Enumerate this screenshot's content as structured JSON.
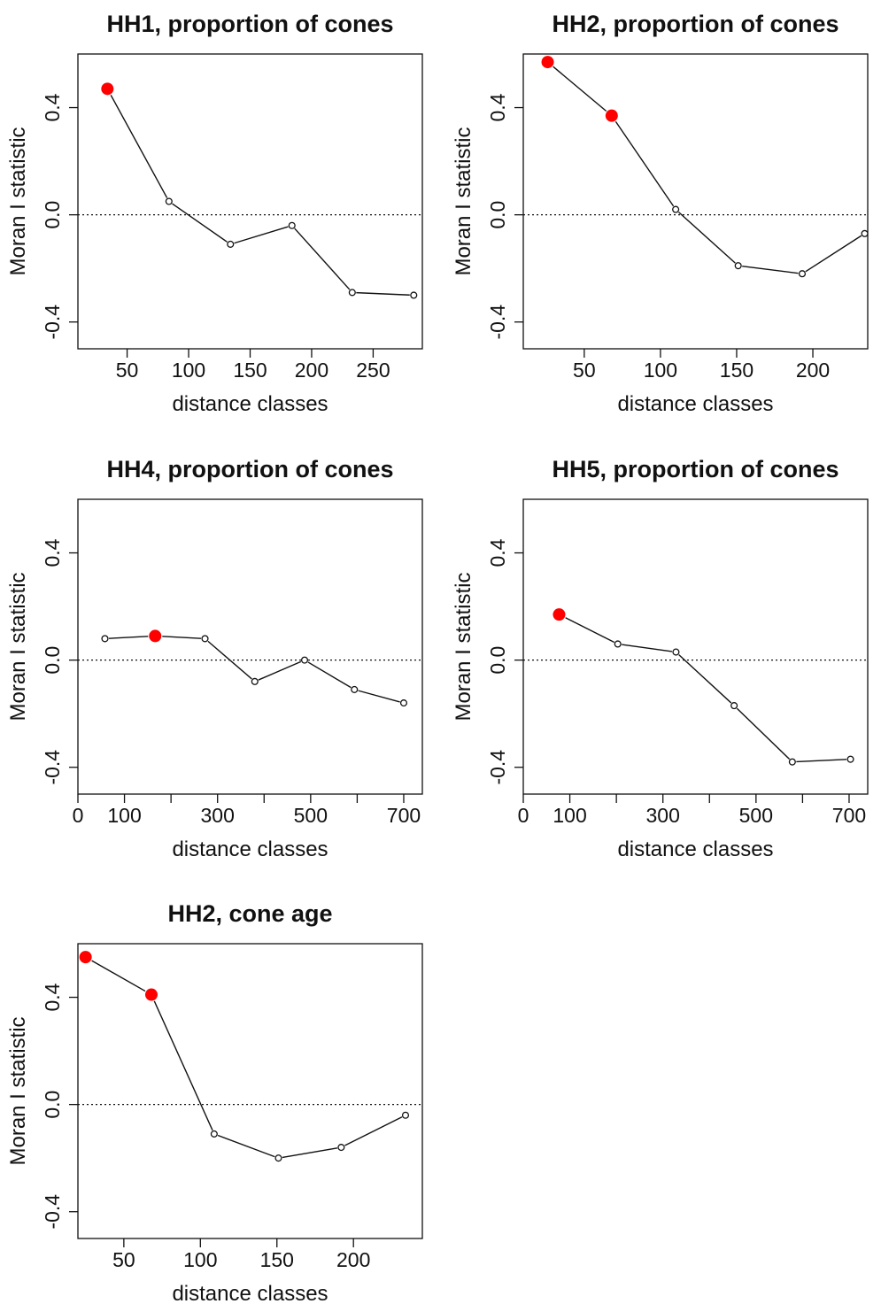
{
  "chart_data": [
    {
      "type": "line",
      "title": "HH1, proportion of cones",
      "xlabel": "distance classes",
      "ylabel": "Moran I statistic",
      "xlim": [
        10,
        290
      ],
      "ylim": [
        -0.5,
        0.6
      ],
      "xticks": [
        50,
        100,
        150,
        200,
        250
      ],
      "yticks": [
        -0.4,
        0.0,
        0.4
      ],
      "reference_line": 0.0,
      "grid": false,
      "colors": {
        "significant": "#ff0000",
        "not_significant": "#ffffff",
        "line": "#111111"
      },
      "points": [
        {
          "x": 34,
          "y": 0.47,
          "significant": true
        },
        {
          "x": 84,
          "y": 0.05,
          "significant": false
        },
        {
          "x": 134,
          "y": -0.11,
          "significant": false
        },
        {
          "x": 184,
          "y": -0.04,
          "significant": false
        },
        {
          "x": 233,
          "y": -0.29,
          "significant": false
        },
        {
          "x": 283,
          "y": -0.3,
          "significant": false
        }
      ]
    },
    {
      "type": "line",
      "title": "HH2, proportion of cones",
      "xlabel": "distance classes",
      "ylabel": "Moran I statistic",
      "xlim": [
        10,
        236
      ],
      "ylim": [
        -0.5,
        0.6
      ],
      "xticks": [
        50,
        100,
        150,
        200
      ],
      "yticks": [
        -0.4,
        0.0,
        0.4
      ],
      "reference_line": 0.0,
      "grid": false,
      "colors": {
        "significant": "#ff0000",
        "not_significant": "#ffffff",
        "line": "#111111"
      },
      "points": [
        {
          "x": 26,
          "y": 0.57,
          "significant": true
        },
        {
          "x": 68,
          "y": 0.37,
          "significant": true
        },
        {
          "x": 110,
          "y": 0.02,
          "significant": false
        },
        {
          "x": 151,
          "y": -0.19,
          "significant": false
        },
        {
          "x": 193,
          "y": -0.22,
          "significant": false
        },
        {
          "x": 234,
          "y": -0.07,
          "significant": false
        }
      ]
    },
    {
      "type": "line",
      "title": "HH4, proportion of cones",
      "xlabel": "distance classes",
      "ylabel": "Moran I statistic",
      "xlim": [
        0,
        740
      ],
      "ylim": [
        -0.5,
        0.6
      ],
      "xticks": [
        0,
        100,
        300,
        500,
        700
      ],
      "xminorticks": [
        200,
        400,
        600
      ],
      "yticks": [
        -0.4,
        0.0,
        0.4
      ],
      "reference_line": 0.0,
      "grid": false,
      "colors": {
        "significant": "#ff0000",
        "not_significant": "#ffffff",
        "line": "#111111"
      },
      "points": [
        {
          "x": 58,
          "y": 0.08,
          "significant": false
        },
        {
          "x": 166,
          "y": 0.09,
          "significant": true
        },
        {
          "x": 273,
          "y": 0.08,
          "significant": false
        },
        {
          "x": 380,
          "y": -0.08,
          "significant": false
        },
        {
          "x": 487,
          "y": 0.0,
          "significant": false
        },
        {
          "x": 594,
          "y": -0.11,
          "significant": false
        },
        {
          "x": 700,
          "y": -0.16,
          "significant": false
        }
      ]
    },
    {
      "type": "line",
      "title": "HH5, proportion of cones",
      "xlabel": "distance classes",
      "ylabel": "Moran I statistic",
      "xlim": [
        0,
        740
      ],
      "ylim": [
        -0.5,
        0.6
      ],
      "xticks": [
        0,
        100,
        300,
        500,
        700
      ],
      "xminorticks": [
        200,
        400,
        600
      ],
      "yticks": [
        -0.4,
        0.0,
        0.4
      ],
      "reference_line": 0.0,
      "grid": false,
      "colors": {
        "significant": "#ff0000",
        "not_significant": "#ffffff",
        "line": "#111111"
      },
      "points": [
        {
          "x": 77,
          "y": 0.17,
          "significant": true
        },
        {
          "x": 203,
          "y": 0.06,
          "significant": false
        },
        {
          "x": 328,
          "y": 0.03,
          "significant": false
        },
        {
          "x": 453,
          "y": -0.17,
          "significant": false
        },
        {
          "x": 578,
          "y": -0.38,
          "significant": false
        },
        {
          "x": 703,
          "y": -0.37,
          "significant": false
        }
      ]
    },
    {
      "type": "line",
      "title": "HH2, cone age",
      "xlabel": "distance classes",
      "ylabel": "Moran I statistic",
      "xlim": [
        20,
        245
      ],
      "ylim": [
        -0.5,
        0.6
      ],
      "xticks": [
        50,
        100,
        150,
        200
      ],
      "yticks": [
        -0.4,
        0.0,
        0.4
      ],
      "reference_line": 0.0,
      "grid": false,
      "colors": {
        "significant": "#ff0000",
        "not_significant": "#ffffff",
        "line": "#111111"
      },
      "points": [
        {
          "x": 25,
          "y": 0.55,
          "significant": true
        },
        {
          "x": 68,
          "y": 0.41,
          "significant": true
        },
        {
          "x": 109,
          "y": -0.11,
          "significant": false
        },
        {
          "x": 151,
          "y": -0.2,
          "significant": false
        },
        {
          "x": 192,
          "y": -0.16,
          "significant": false
        },
        {
          "x": 234,
          "y": -0.04,
          "significant": false
        }
      ]
    }
  ]
}
